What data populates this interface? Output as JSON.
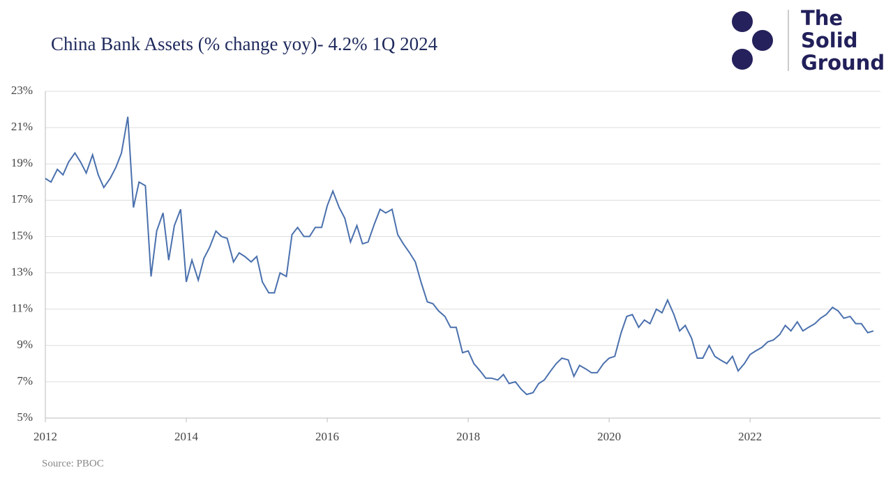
{
  "chart_data": {
    "type": "line",
    "title": "China Bank Assets (% change yoy)- 4.2% 1Q 2024",
    "source": "Source: PBOC",
    "logo": [
      "The",
      "Solid",
      "Ground"
    ],
    "x": [
      2012,
      2012.08,
      2012.17,
      2012.25,
      2012.33,
      2012.42,
      2012.5,
      2012.58,
      2012.67,
      2012.75,
      2012.83,
      2012.92,
      2013,
      2013.08,
      2013.17,
      2013.25,
      2013.33,
      2013.42,
      2013.5,
      2013.58,
      2013.67,
      2013.75,
      2013.83,
      2013.92,
      2014,
      2014.08,
      2014.17,
      2014.25,
      2014.33,
      2014.42,
      2014.5,
      2014.58,
      2014.67,
      2014.75,
      2014.83,
      2014.92,
      2015,
      2015.08,
      2015.17,
      2015.25,
      2015.33,
      2015.42,
      2015.5,
      2015.58,
      2015.67,
      2015.75,
      2015.83,
      2015.92,
      2016,
      2016.08,
      2016.17,
      2016.25,
      2016.33,
      2016.42,
      2016.5,
      2016.58,
      2016.67,
      2016.75,
      2016.83,
      2016.92,
      2017,
      2017.08,
      2017.17,
      2017.25,
      2017.33,
      2017.42,
      2017.5,
      2017.58,
      2017.67,
      2017.75,
      2017.83,
      2017.92,
      2018,
      2018.08,
      2018.17,
      2018.25,
      2018.33,
      2018.42,
      2018.5,
      2018.58,
      2018.67,
      2018.75,
      2018.83,
      2018.92,
      2019,
      2019.08,
      2019.17,
      2019.25,
      2019.33,
      2019.42,
      2019.5,
      2019.58,
      2019.67,
      2019.75,
      2019.83,
      2019.92,
      2020,
      2020.08,
      2020.17,
      2020.25,
      2020.33,
      2020.42,
      2020.5,
      2020.58,
      2020.67,
      2020.75,
      2020.83,
      2020.92,
      2021,
      2021.08,
      2021.17,
      2021.25,
      2021.33,
      2021.42,
      2021.5,
      2021.58,
      2021.67,
      2021.75,
      2021.83,
      2021.92,
      2022,
      2022.08,
      2022.17,
      2022.25,
      2022.33,
      2022.42,
      2022.5,
      2022.58,
      2022.67,
      2022.75,
      2022.83,
      2022.92,
      2023,
      2023.08,
      2023.17,
      2023.25,
      2023.33,
      2023.42,
      2023.5,
      2023.58,
      2023.67,
      2023.75
    ],
    "series": [
      {
        "color": "#4a70ad",
        "values": [
          18.2,
          18.0,
          18.7,
          18.4,
          19.1,
          19.6,
          19.1,
          18.5,
          19.5,
          18.4,
          17.7,
          18.2,
          18.8,
          19.6,
          21.6,
          16.6,
          18.0,
          17.8,
          12.8,
          15.3,
          16.3,
          13.7,
          15.6,
          16.5,
          12.5,
          13.7,
          12.6,
          13.8,
          14.4,
          15.3,
          15.0,
          14.9,
          13.6,
          14.1,
          13.9,
          13.6,
          13.9,
          12.5,
          11.9,
          11.9,
          13.0,
          12.8,
          15.1,
          15.5,
          15.0,
          15.0,
          15.5,
          15.5,
          16.7,
          17.5,
          16.6,
          16.0,
          14.7,
          15.6,
          14.6,
          14.7,
          15.7,
          16.5,
          16.3,
          16.5,
          15.1,
          14.6,
          14.1,
          13.6,
          12.5,
          11.4,
          11.3,
          10.9,
          10.6,
          10.0,
          10.0,
          8.6,
          8.7,
          8.0,
          7.6,
          7.2,
          7.2,
          7.1,
          7.4,
          6.9,
          7.0,
          6.6,
          6.3,
          6.4,
          6.9,
          7.1,
          7.6,
          8.0,
          8.3,
          8.2,
          7.3,
          7.9,
          7.7,
          7.5,
          7.5,
          8.0,
          8.3,
          8.4,
          9.7,
          10.6,
          10.7,
          10.0,
          10.4,
          10.2,
          11.0,
          10.8,
          11.5,
          10.7,
          9.8,
          10.1,
          9.4,
          8.3,
          8.3,
          9.0,
          8.4,
          8.2,
          8.0,
          8.4,
          7.6,
          8.0,
          8.5,
          8.7,
          8.9,
          9.2,
          9.3,
          9.6,
          10.1,
          9.8,
          10.3,
          9.8,
          10.0,
          10.2,
          10.5,
          10.7,
          11.1,
          10.9,
          10.5,
          10.6,
          10.2,
          10.2,
          9.7,
          9.8
        ]
      }
    ],
    "xlim": [
      2012,
      2023.85
    ],
    "xticks": [
      2012,
      2014,
      2016,
      2018,
      2020,
      2022
    ],
    "ylim": [
      5,
      23
    ],
    "yticks": [
      {
        "value": 5,
        "label": "5%"
      },
      {
        "value": 7,
        "label": "7%"
      },
      {
        "value": 9,
        "label": "9%"
      },
      {
        "value": 11,
        "label": "11%"
      },
      {
        "value": 13,
        "label": "13%"
      },
      {
        "value": 15,
        "label": "15%"
      },
      {
        "value": 17,
        "label": "17%"
      },
      {
        "value": 19,
        "label": "19%"
      },
      {
        "value": 21,
        "label": "21%"
      },
      {
        "value": 23,
        "label": "23%"
      }
    ],
    "grid": true
  }
}
